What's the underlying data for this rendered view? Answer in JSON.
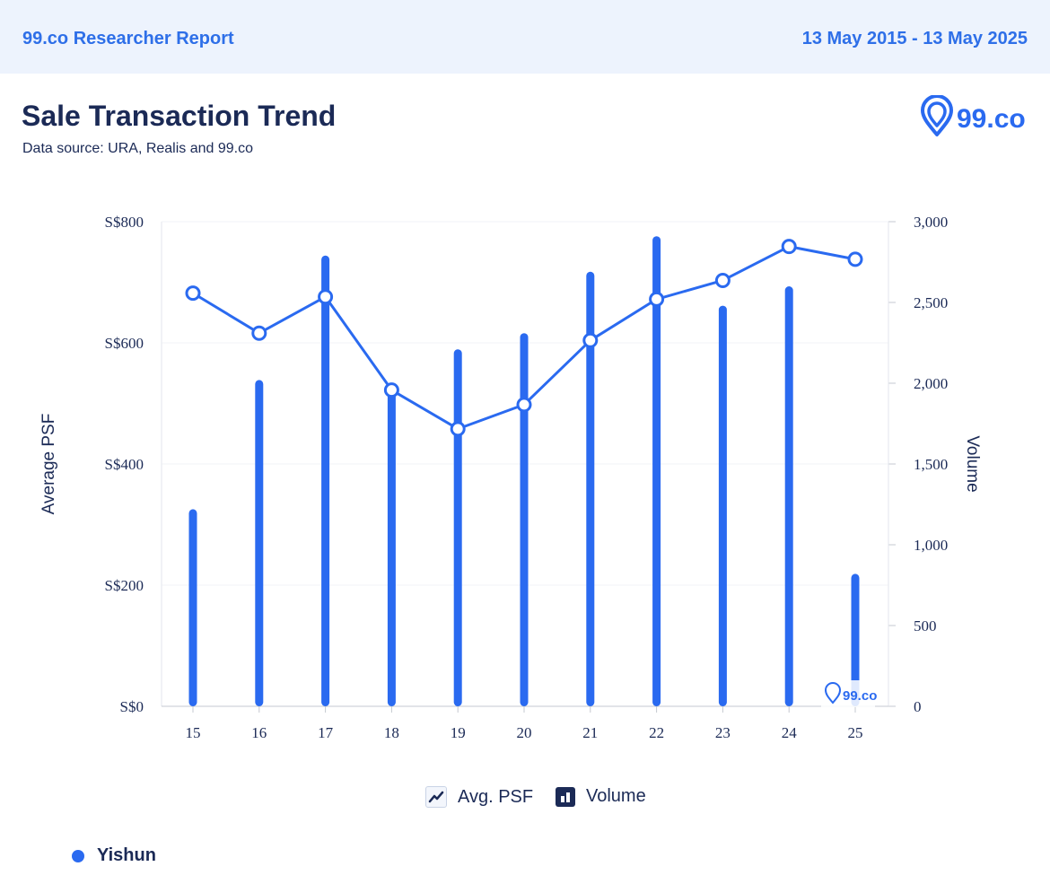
{
  "header": {
    "brand": "99.co Researcher Report",
    "date_range": "13 May 2015 - 13 May 2025"
  },
  "title": "Sale Transaction Trend",
  "subtitle": "Data source: URA, Realis and 99.co",
  "logo_text": "99.co",
  "colors": {
    "accent": "#2a6af0",
    "text": "#1b2a56",
    "header_bg": "#edf3fd"
  },
  "chart_data": {
    "type": "bar",
    "categories": [
      "15",
      "16",
      "17",
      "18",
      "19",
      "20",
      "21",
      "22",
      "23",
      "24",
      "25"
    ],
    "series": [
      {
        "name": "Avg. PSF",
        "type": "line",
        "axis": "left",
        "values": [
          682,
          616,
          676,
          522,
          458,
          498,
          604,
          672,
          703,
          759,
          738
        ]
      },
      {
        "name": "Volume",
        "type": "bar",
        "axis": "right",
        "values": [
          1220,
          2020,
          2790,
          1960,
          2210,
          2310,
          2690,
          2910,
          2480,
          2600,
          820
        ]
      }
    ],
    "ylabel": "Average PSF",
    "y2label": "Volume",
    "ylim": [
      0,
      800
    ],
    "y2lim": [
      0,
      3000
    ],
    "yticks": [
      "S$0",
      "S$200",
      "S$400",
      "S$600",
      "S$800"
    ],
    "y2ticks": [
      "0",
      "500",
      "1,000",
      "1,500",
      "2,000",
      "2,500",
      "3,000"
    ],
    "grid": true,
    "legend_position": "bottom"
  },
  "legend": [
    {
      "label": "Avg. PSF",
      "icon": "line-chart-icon"
    },
    {
      "label": "Volume",
      "icon": "bar-chart-icon"
    }
  ],
  "location": {
    "label": "Yishun"
  }
}
